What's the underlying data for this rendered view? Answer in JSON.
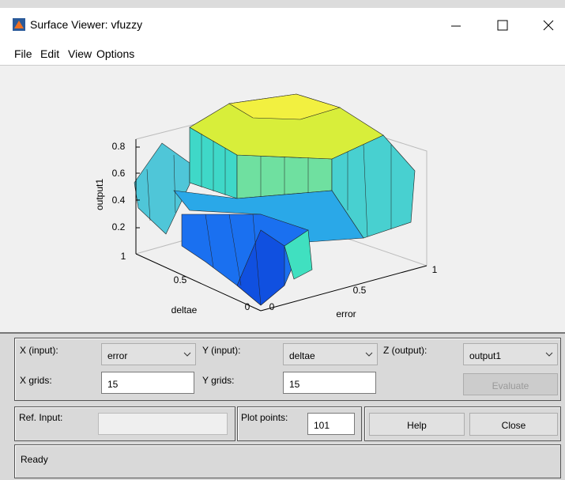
{
  "window": {
    "title": "Surface Viewer: vfuzzy",
    "menu": [
      "File",
      "Edit",
      "View",
      "Options"
    ]
  },
  "plot": {
    "z_label": "output1",
    "z_ticks": [
      "0.2",
      "0.4",
      "0.6",
      "0.8"
    ],
    "y_label": "deltae",
    "y_ticks": [
      "0",
      "0.5",
      "1"
    ],
    "x_label": "error",
    "x_ticks": [
      "0",
      "0.5",
      "1"
    ]
  },
  "controls": {
    "x_input": {
      "label": "X (input):",
      "value": "error"
    },
    "y_input": {
      "label": "Y (input):",
      "value": "deltae"
    },
    "z_output": {
      "label": "Z (output):",
      "value": "output1"
    },
    "x_grids": {
      "label": "X grids:",
      "value": "15"
    },
    "y_grids": {
      "label": "Y grids:",
      "value": "15"
    },
    "evaluate": "Evaluate",
    "ref_input": {
      "label": "Ref. Input:"
    },
    "plot_points": {
      "label": "Plot points:",
      "value": "101"
    },
    "help": "Help",
    "close": "Close"
  },
  "status": "Ready"
}
